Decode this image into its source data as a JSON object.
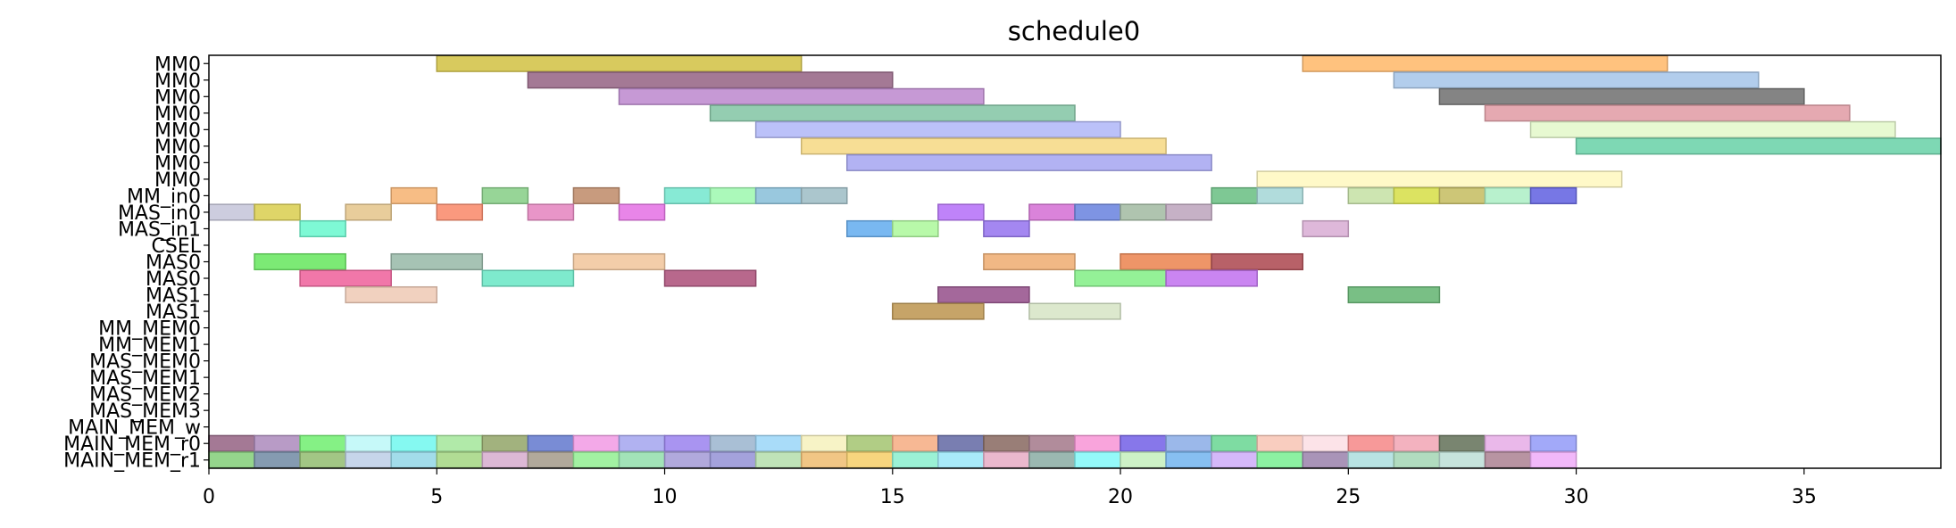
{
  "chart_data": {
    "type": "gantt",
    "title": "schedule0",
    "xlabel": "",
    "ylabel": "",
    "xlim": [
      0,
      38
    ],
    "xticks": [
      0,
      5,
      10,
      15,
      20,
      25,
      30,
      35
    ],
    "grid": false,
    "legend": "none",
    "rows": [
      "MM0",
      "MM0",
      "MM0",
      "MM0",
      "MM0",
      "MM0",
      "MM0",
      "MM0",
      "MM_in0",
      "MAS_in0",
      "MAS_in1",
      "CSEL",
      "MAS0",
      "MAS0",
      "MAS1",
      "MAS1",
      "MM_MEM0",
      "MM_MEM1",
      "MAS_MEM0",
      "MAS_MEM1",
      "MAS_MEM2",
      "MAS_MEM3",
      "MAIN_MEM_w",
      "MAIN_MEM_r0",
      "MAIN_MEM_r1"
    ],
    "tasks": [
      {
        "row": 0,
        "start": 5,
        "end": 13,
        "color": "#d4c44c"
      },
      {
        "row": 0,
        "start": 24,
        "end": 32,
        "color": "#ffbb70"
      },
      {
        "row": 1,
        "start": 7,
        "end": 15,
        "color": "#9a6a8a"
      },
      {
        "row": 1,
        "start": 26,
        "end": 34,
        "color": "#aac8ea"
      },
      {
        "row": 2,
        "start": 9,
        "end": 17,
        "color": "#c08ed0"
      },
      {
        "row": 2,
        "start": 27,
        "end": 35,
        "color": "#777777"
      },
      {
        "row": 3,
        "start": 11,
        "end": 19,
        "color": "#88c8a8"
      },
      {
        "row": 3,
        "start": 28,
        "end": 36,
        "color": "#e2a0a8"
      },
      {
        "row": 4,
        "start": 12,
        "end": 20,
        "color": "#b4baf8"
      },
      {
        "row": 4,
        "start": 29,
        "end": 37,
        "color": "#e4f8cc"
      },
      {
        "row": 5,
        "start": 13,
        "end": 21,
        "color": "#f6da8a"
      },
      {
        "row": 5,
        "start": 30,
        "end": 38,
        "color": "#70d4ac"
      },
      {
        "row": 6,
        "start": 14,
        "end": 22,
        "color": "#aaaaf2"
      },
      {
        "row": 7,
        "start": 23,
        "end": 31,
        "color": "#fff8c2"
      },
      {
        "row": 8,
        "start": 4,
        "end": 5,
        "color": "#f6b678"
      },
      {
        "row": 8,
        "start": 6,
        "end": 7,
        "color": "#8cd08c"
      },
      {
        "row": 8,
        "start": 8,
        "end": 9,
        "color": "#c29070"
      },
      {
        "row": 8,
        "start": 10,
        "end": 11,
        "color": "#7ae8d0"
      },
      {
        "row": 8,
        "start": 11,
        "end": 12,
        "color": "#a2f8b2"
      },
      {
        "row": 8,
        "start": 12,
        "end": 13,
        "color": "#8ec2da"
      },
      {
        "row": 8,
        "start": 13,
        "end": 14,
        "color": "#a2c0c8"
      },
      {
        "row": 8,
        "start": 22,
        "end": 23,
        "color": "#70c288"
      },
      {
        "row": 8,
        "start": 23,
        "end": 24,
        "color": "#a8d8d8"
      },
      {
        "row": 8,
        "start": 25,
        "end": 26,
        "color": "#c8e2a8"
      },
      {
        "row": 8,
        "start": 26,
        "end": 27,
        "color": "#d8e050"
      },
      {
        "row": 8,
        "start": 27,
        "end": 28,
        "color": "#c8c068"
      },
      {
        "row": 8,
        "start": 28,
        "end": 29,
        "color": "#b0f0c8"
      },
      {
        "row": 8,
        "start": 29,
        "end": 30,
        "color": "#6868e2"
      },
      {
        "row": 9,
        "start": 0,
        "end": 1,
        "color": "#c8c8dc"
      },
      {
        "row": 9,
        "start": 1,
        "end": 2,
        "color": "#dcd058"
      },
      {
        "row": 9,
        "start": 3,
        "end": 4,
        "color": "#e6c890"
      },
      {
        "row": 9,
        "start": 5,
        "end": 6,
        "color": "#fa8e70"
      },
      {
        "row": 9,
        "start": 7,
        "end": 8,
        "color": "#e68ac2"
      },
      {
        "row": 9,
        "start": 9,
        "end": 10,
        "color": "#e678e6"
      },
      {
        "row": 9,
        "start": 16,
        "end": 17,
        "color": "#b876f8"
      },
      {
        "row": 9,
        "start": 18,
        "end": 19,
        "color": "#d676d6"
      },
      {
        "row": 9,
        "start": 19,
        "end": 20,
        "color": "#7088e0"
      },
      {
        "row": 9,
        "start": 20,
        "end": 21,
        "color": "#a6bea6"
      },
      {
        "row": 9,
        "start": 21,
        "end": 22,
        "color": "#c0a8c0"
      },
      {
        "row": 10,
        "start": 2,
        "end": 3,
        "color": "#70f8d0"
      },
      {
        "row": 10,
        "start": 14,
        "end": 15,
        "color": "#6ab0f0"
      },
      {
        "row": 10,
        "start": 15,
        "end": 16,
        "color": "#b0f8a0"
      },
      {
        "row": 10,
        "start": 17,
        "end": 18,
        "color": "#9a7af0"
      },
      {
        "row": 10,
        "start": 24,
        "end": 25,
        "color": "#dab0d6"
      },
      {
        "row": 12,
        "start": 1,
        "end": 3,
        "color": "#6ee866"
      },
      {
        "row": 12,
        "start": 4,
        "end": 6,
        "color": "#9cbcac"
      },
      {
        "row": 12,
        "start": 8,
        "end": 10,
        "color": "#f2c8a0"
      },
      {
        "row": 12,
        "start": 17,
        "end": 19,
        "color": "#f0b078"
      },
      {
        "row": 12,
        "start": 20,
        "end": 22,
        "color": "#ec8a58"
      },
      {
        "row": 12,
        "start": 22,
        "end": 24,
        "color": "#b05058"
      },
      {
        "row": 13,
        "start": 2,
        "end": 4,
        "color": "#f068a0"
      },
      {
        "row": 13,
        "start": 6,
        "end": 8,
        "color": "#70e8c8"
      },
      {
        "row": 13,
        "start": 10,
        "end": 12,
        "color": "#b05880"
      },
      {
        "row": 13,
        "start": 19,
        "end": 21,
        "color": "#88f08c"
      },
      {
        "row": 13,
        "start": 21,
        "end": 23,
        "color": "#c478f0"
      },
      {
        "row": 14,
        "start": 3,
        "end": 5,
        "color": "#f0ccb8"
      },
      {
        "row": 14,
        "start": 16,
        "end": 18,
        "color": "#9a5890"
      },
      {
        "row": 14,
        "start": 25,
        "end": 27,
        "color": "#6ab878"
      },
      {
        "row": 15,
        "start": 15,
        "end": 17,
        "color": "#c09a58"
      },
      {
        "row": 15,
        "start": 18,
        "end": 20,
        "color": "#d8e6c8"
      },
      {
        "row": 23,
        "start": 0,
        "end": 1,
        "color": "#9a6a8a"
      },
      {
        "row": 23,
        "start": 1,
        "end": 2,
        "color": "#b090c0"
      },
      {
        "row": 23,
        "start": 2,
        "end": 3,
        "color": "#78f078"
      },
      {
        "row": 23,
        "start": 3,
        "end": 4,
        "color": "#c0f8f8"
      },
      {
        "row": 23,
        "start": 4,
        "end": 5,
        "color": "#78f8f0"
      },
      {
        "row": 23,
        "start": 5,
        "end": 6,
        "color": "#a8e8a0"
      },
      {
        "row": 23,
        "start": 6,
        "end": 7,
        "color": "#98aa70"
      },
      {
        "row": 23,
        "start": 7,
        "end": 8,
        "color": "#6a80d0"
      },
      {
        "row": 23,
        "start": 8,
        "end": 9,
        "color": "#f2a0e6"
      },
      {
        "row": 23,
        "start": 9,
        "end": 10,
        "color": "#a8aaf0"
      },
      {
        "row": 23,
        "start": 10,
        "end": 11,
        "color": "#a088f0"
      },
      {
        "row": 23,
        "start": 11,
        "end": 12,
        "color": "#a0b8d0"
      },
      {
        "row": 23,
        "start": 12,
        "end": 13,
        "color": "#a0d8f8"
      },
      {
        "row": 23,
        "start": 13,
        "end": 14,
        "color": "#f6f2c0"
      },
      {
        "row": 23,
        "start": 14,
        "end": 15,
        "color": "#a8c878"
      },
      {
        "row": 23,
        "start": 15,
        "end": 16,
        "color": "#f6b088"
      },
      {
        "row": 23,
        "start": 16,
        "end": 17,
        "color": "#6a70a8"
      },
      {
        "row": 23,
        "start": 17,
        "end": 18,
        "color": "#8e7068"
      },
      {
        "row": 23,
        "start": 18,
        "end": 19,
        "color": "#a88090"
      },
      {
        "row": 23,
        "start": 19,
        "end": 20,
        "color": "#f89ad8"
      },
      {
        "row": 23,
        "start": 20,
        "end": 21,
        "color": "#7a68e8"
      },
      {
        "row": 23,
        "start": 21,
        "end": 22,
        "color": "#90b0e8"
      },
      {
        "row": 23,
        "start": 22,
        "end": 23,
        "color": "#70d898"
      },
      {
        "row": 23,
        "start": 23,
        "end": 24,
        "color": "#f8c8b8"
      },
      {
        "row": 23,
        "start": 24,
        "end": 25,
        "color": "#fce0e6"
      },
      {
        "row": 23,
        "start": 25,
        "end": 26,
        "color": "#f68e8e"
      },
      {
        "row": 23,
        "start": 26,
        "end": 27,
        "color": "#f2aab8"
      },
      {
        "row": 23,
        "start": 27,
        "end": 28,
        "color": "#6a7860"
      },
      {
        "row": 23,
        "start": 28,
        "end": 29,
        "color": "#e8b0e8"
      },
      {
        "row": 23,
        "start": 29,
        "end": 30,
        "color": "#98a0f8"
      },
      {
        "row": 24,
        "start": 0,
        "end": 1,
        "color": "#8ad080"
      },
      {
        "row": 24,
        "start": 1,
        "end": 2,
        "color": "#7890a8"
      },
      {
        "row": 24,
        "start": 2,
        "end": 3,
        "color": "#98c078"
      },
      {
        "row": 24,
        "start": 3,
        "end": 4,
        "color": "#c0d0e8"
      },
      {
        "row": 24,
        "start": 4,
        "end": 5,
        "color": "#98d8e8"
      },
      {
        "row": 24,
        "start": 5,
        "end": 6,
        "color": "#a8d888"
      },
      {
        "row": 24,
        "start": 6,
        "end": 7,
        "color": "#d8b0d0"
      },
      {
        "row": 24,
        "start": 7,
        "end": 8,
        "color": "#a8a090"
      },
      {
        "row": 24,
        "start": 8,
        "end": 9,
        "color": "#98f098"
      },
      {
        "row": 24,
        "start": 9,
        "end": 10,
        "color": "#98e0b0"
      },
      {
        "row": 24,
        "start": 10,
        "end": 11,
        "color": "#a8a0d8"
      },
      {
        "row": 24,
        "start": 11,
        "end": 12,
        "color": "#9a98d8"
      },
      {
        "row": 24,
        "start": 12,
        "end": 13,
        "color": "#b8e0b0"
      },
      {
        "row": 24,
        "start": 13,
        "end": 14,
        "color": "#f0c078"
      },
      {
        "row": 24,
        "start": 14,
        "end": 15,
        "color": "#f6d070"
      },
      {
        "row": 24,
        "start": 15,
        "end": 16,
        "color": "#90f0d0"
      },
      {
        "row": 24,
        "start": 16,
        "end": 17,
        "color": "#a0e8f8"
      },
      {
        "row": 24,
        "start": 17,
        "end": 18,
        "color": "#e8b0c8"
      },
      {
        "row": 24,
        "start": 18,
        "end": 19,
        "color": "#90b0a8"
      },
      {
        "row": 24,
        "start": 19,
        "end": 20,
        "color": "#88f8f8"
      },
      {
        "row": 24,
        "start": 20,
        "end": 21,
        "color": "#c8f0c0"
      },
      {
        "row": 24,
        "start": 21,
        "end": 22,
        "color": "#7ab8f0"
      },
      {
        "row": 24,
        "start": 22,
        "end": 23,
        "color": "#d0b0f8"
      },
      {
        "row": 24,
        "start": 23,
        "end": 24,
        "color": "#80f098"
      },
      {
        "row": 24,
        "start": 24,
        "end": 25,
        "color": "#a088b0"
      },
      {
        "row": 24,
        "start": 25,
        "end": 26,
        "color": "#b0e0e0"
      },
      {
        "row": 24,
        "start": 26,
        "end": 27,
        "color": "#a8d8b8"
      },
      {
        "row": 24,
        "start": 27,
        "end": 28,
        "color": "#c0e0d8"
      },
      {
        "row": 24,
        "start": 28,
        "end": 29,
        "color": "#b08898"
      },
      {
        "row": 24,
        "start": 29,
        "end": 30,
        "color": "#f0b0f8"
      }
    ]
  }
}
